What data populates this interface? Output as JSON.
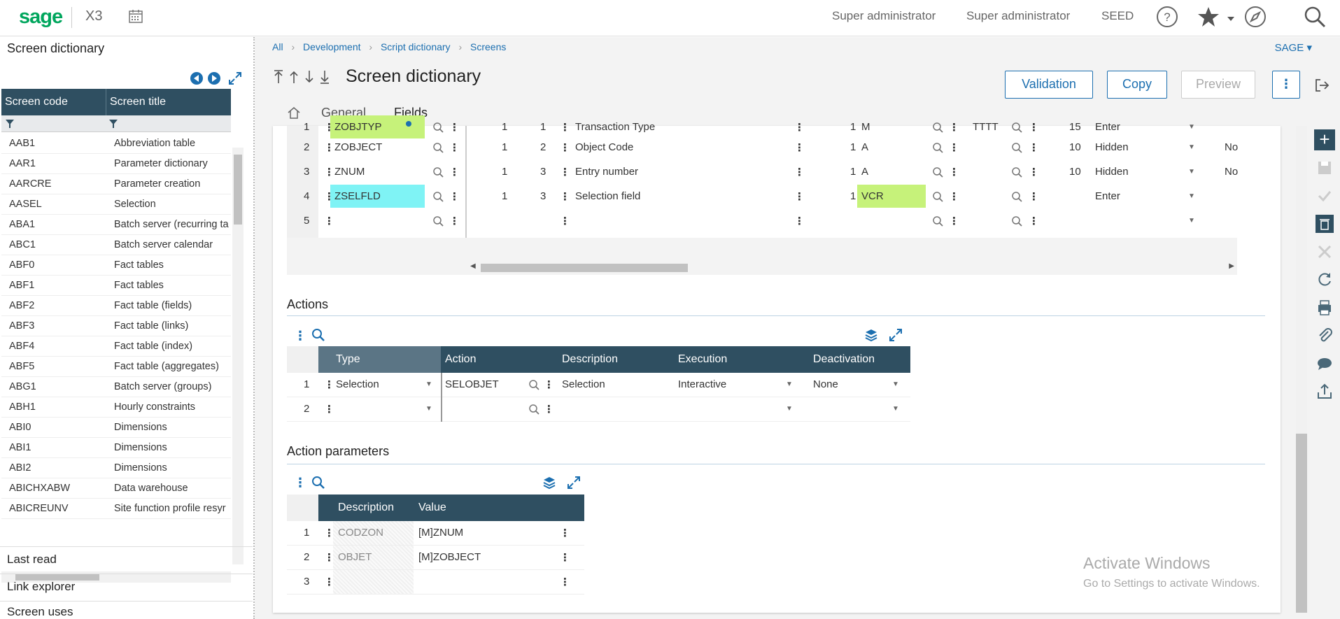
{
  "topbar": {
    "logo": "sage",
    "product": "X3",
    "user1": "Super administrator",
    "user2": "Super administrator",
    "folder": "SEED"
  },
  "left_panel": {
    "title": "Screen dictionary",
    "columns": [
      "Screen code",
      "Screen title"
    ],
    "rows": [
      [
        "AAB1",
        "Abbreviation table"
      ],
      [
        "AAR1",
        "Parameter dictionary"
      ],
      [
        "AARCRE",
        "Parameter creation"
      ],
      [
        "AASEL",
        "Selection"
      ],
      [
        "ABA1",
        "Batch server (recurring ta"
      ],
      [
        "ABC1",
        "Batch server calendar"
      ],
      [
        "ABF0",
        "Fact tables"
      ],
      [
        "ABF1",
        "Fact tables"
      ],
      [
        "ABF2",
        "Fact table (fields)"
      ],
      [
        "ABF3",
        "Fact table (links)"
      ],
      [
        "ABF4",
        "Fact table (index)"
      ],
      [
        "ABF5",
        "Fact table (aggregates)"
      ],
      [
        "ABG1",
        "Batch server (groups)"
      ],
      [
        "ABH1",
        "Hourly constraints"
      ],
      [
        "ABI0",
        "Dimensions"
      ],
      [
        "ABI1",
        "Dimensions"
      ],
      [
        "ABI2",
        "Dimensions"
      ],
      [
        "ABICHXABW",
        "Data warehouse"
      ],
      [
        "ABICREUNV",
        "Site function profile resyr"
      ]
    ],
    "sections": [
      "Last read",
      "Link explorer",
      "Screen uses"
    ]
  },
  "breadcrumbs": [
    "All",
    "Development",
    "Script dictionary",
    "Screens"
  ],
  "sage_menu": "SAGE",
  "header": {
    "title": "Screen dictionary",
    "buttons": {
      "validation": "Validation",
      "copy": "Copy",
      "preview": "Preview"
    },
    "tabs": {
      "home": "",
      "general": "General",
      "fields": "Fields"
    }
  },
  "fields_grid": {
    "rows": [
      {
        "n": "1",
        "field": "ZOBJTYP",
        "a": "1",
        "b": "1",
        "desc": "Transaction Type",
        "len": "1",
        "type": "M",
        "code": "TTTT",
        "size": "15",
        "mode": "Enter",
        "extra": ""
      },
      {
        "n": "2",
        "field": "ZOBJECT",
        "a": "1",
        "b": "2",
        "desc": "Object Code",
        "len": "1",
        "type": "A",
        "code": "",
        "size": "10",
        "mode": "Hidden",
        "extra": "No"
      },
      {
        "n": "3",
        "field": "ZNUM",
        "a": "1",
        "b": "3",
        "desc": "Entry number",
        "len": "1",
        "type": "A",
        "code": "",
        "size": "10",
        "mode": "Hidden",
        "extra": "No"
      },
      {
        "n": "4",
        "field": "ZSELFLD",
        "a": "1",
        "b": "3",
        "desc": "Selection field",
        "len": "1",
        "type": "VCR",
        "code": "",
        "size": "",
        "mode": "Enter",
        "extra": ""
      },
      {
        "n": "5",
        "field": "",
        "a": "",
        "b": "",
        "desc": "",
        "len": "",
        "type": "",
        "code": "",
        "size": "",
        "mode": "",
        "extra": ""
      }
    ]
  },
  "actions": {
    "title": "Actions",
    "columns": [
      "Type",
      "Action",
      "Description",
      "Execution",
      "Deactivation"
    ],
    "rows": [
      {
        "n": "1",
        "type": "Selection",
        "action": "SELOBJET",
        "description": "Selection",
        "execution": "Interactive",
        "deactivation": "None"
      },
      {
        "n": "2",
        "type": "",
        "action": "",
        "description": "",
        "execution": "",
        "deactivation": ""
      }
    ]
  },
  "action_parameters": {
    "title": "Action parameters",
    "columns": [
      "Description",
      "Value"
    ],
    "rows": [
      {
        "n": "1",
        "description": "CODZON",
        "value": "[M]ZNUM"
      },
      {
        "n": "2",
        "description": "OBJET",
        "value": "[M]ZOBJECT"
      },
      {
        "n": "3",
        "description": "",
        "value": ""
      }
    ]
  },
  "watermark": {
    "line1": "Activate Windows",
    "line2": "Go to Settings to activate Windows."
  },
  "colors": {
    "accent": "#1c6fb0",
    "header": "#2f4f61",
    "highlight_green": "#c6f27a",
    "highlight_cyan": "#7ff3f5"
  }
}
